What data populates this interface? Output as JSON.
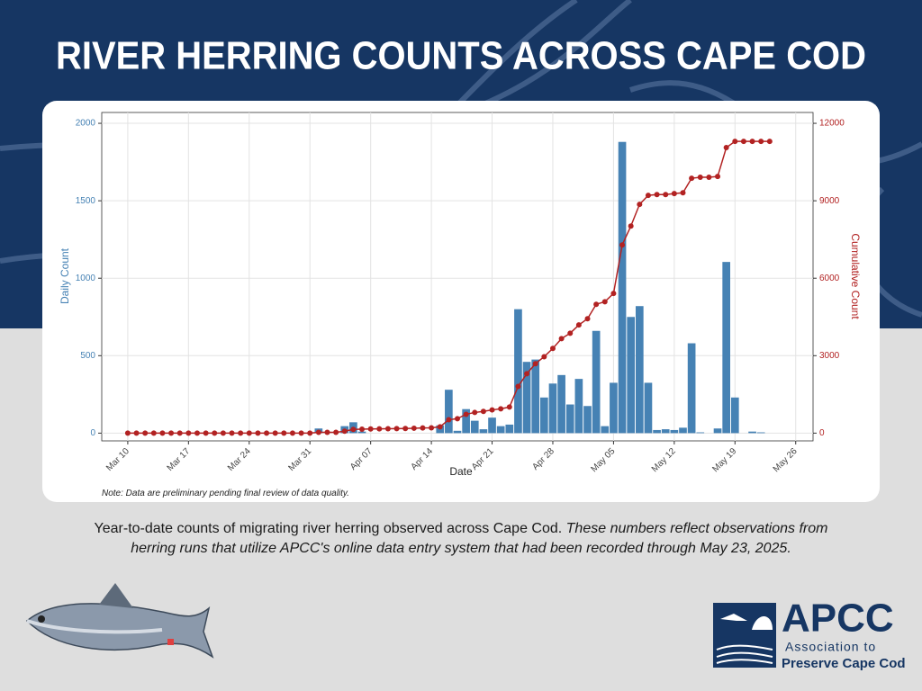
{
  "title": "RIVER HERRING COUNTS ACROSS CAPE COD",
  "caption": {
    "lead": "Year-to-date counts of migrating river herring observed across Cape Cod.",
    "italic_line1": "These numbers reflect observations from",
    "italic_line2": "herring runs that utilize APCC's online data entry system that had been recorded through May 23, 2025."
  },
  "logo": {
    "name": "APCC",
    "line1": "Association to",
    "line2": "Preserve Cape Cod"
  },
  "chart_data": {
    "type": "bar-line",
    "x_label": "Date",
    "y_label": "Daily Count",
    "y2_label": "Cumulative Count",
    "note": "Note: Data are preliminary pending final review of data quality.",
    "x": [
      "Mar 10",
      "Mar 11",
      "Mar 12",
      "Mar 13",
      "Mar 14",
      "Mar 15",
      "Mar 16",
      "Mar 17",
      "Mar 18",
      "Mar 19",
      "Mar 20",
      "Mar 21",
      "Mar 22",
      "Mar 23",
      "Mar 24",
      "Mar 25",
      "Mar 26",
      "Mar 27",
      "Mar 28",
      "Mar 29",
      "Mar 30",
      "Mar 31",
      "Apr 01",
      "Apr 02",
      "Apr 03",
      "Apr 04",
      "Apr 05",
      "Apr 06",
      "Apr 07",
      "Apr 08",
      "Apr 09",
      "Apr 10",
      "Apr 11",
      "Apr 12",
      "Apr 13",
      "Apr 14",
      "Apr 15",
      "Apr 16",
      "Apr 17",
      "Apr 18",
      "Apr 19",
      "Apr 20",
      "Apr 21",
      "Apr 22",
      "Apr 23",
      "Apr 24",
      "Apr 25",
      "Apr 26",
      "Apr 27",
      "Apr 28",
      "Apr 29",
      "Apr 30",
      "May 01",
      "May 02",
      "May 03",
      "May 04",
      "May 05",
      "May 06",
      "May 07",
      "May 08",
      "May 09",
      "May 10",
      "May 11",
      "May 12",
      "May 13",
      "May 14",
      "May 15",
      "May 16",
      "May 17",
      "May 18",
      "May 19",
      "May 20",
      "May 21",
      "May 22",
      "May 23"
    ],
    "xlim": [
      "Mar 07",
      "May 28"
    ],
    "xticks": [
      "Mar 10",
      "Mar 17",
      "Mar 24",
      "Mar 31",
      "Apr 07",
      "Apr 14",
      "Apr 21",
      "Apr 28",
      "May 05",
      "May 12",
      "May 19",
      "May 26"
    ],
    "ylim": [
      -50,
      2070
    ],
    "yticks": [
      0,
      500,
      1000,
      1500,
      2000
    ],
    "y2lim": [
      -300,
      12420
    ],
    "y2ticks": [
      0,
      3000,
      6000,
      9000,
      12000
    ],
    "grid": true,
    "series": [
      {
        "type": "bar",
        "color": "#4682b4",
        "values": [
          0,
          0,
          0,
          0,
          0,
          0,
          0,
          0,
          0,
          0,
          0,
          0,
          0,
          0,
          0,
          0,
          0,
          0,
          0,
          0,
          0,
          0,
          30,
          0,
          0,
          45,
          70,
          10,
          0,
          0,
          0,
          0,
          0,
          0,
          0,
          0,
          50,
          280,
          15,
          155,
          80,
          25,
          100,
          45,
          55,
          800,
          460,
          475,
          230,
          320,
          375,
          185,
          350,
          175,
          660,
          45,
          325,
          1880,
          750,
          820,
          325,
          20,
          25,
          20,
          35,
          580,
          5,
          0,
          30,
          1105,
          230,
          0,
          10,
          5,
          0
        ]
      },
      {
        "type": "line",
        "axis": "y2",
        "color": "#b22222",
        "values": [
          0,
          0,
          0,
          0,
          0,
          0,
          0,
          0,
          0,
          0,
          0,
          0,
          0,
          0,
          0,
          0,
          0,
          0,
          0,
          0,
          0,
          0,
          30,
          30,
          30,
          75,
          145,
          155,
          160,
          165,
          170,
          175,
          180,
          190,
          200,
          205,
          244,
          520,
          560,
          730,
          800,
          840,
          900,
          940,
          1010,
          1810,
          2300,
          2690,
          2960,
          3280,
          3660,
          3870,
          4190,
          4430,
          4990,
          5090,
          5410,
          7290,
          8020,
          8860,
          9210,
          9240,
          9240,
          9280,
          9310,
          9870,
          9910,
          9910,
          9940,
          11060,
          11300,
          11300,
          11300,
          11300,
          11300
        ]
      }
    ]
  }
}
